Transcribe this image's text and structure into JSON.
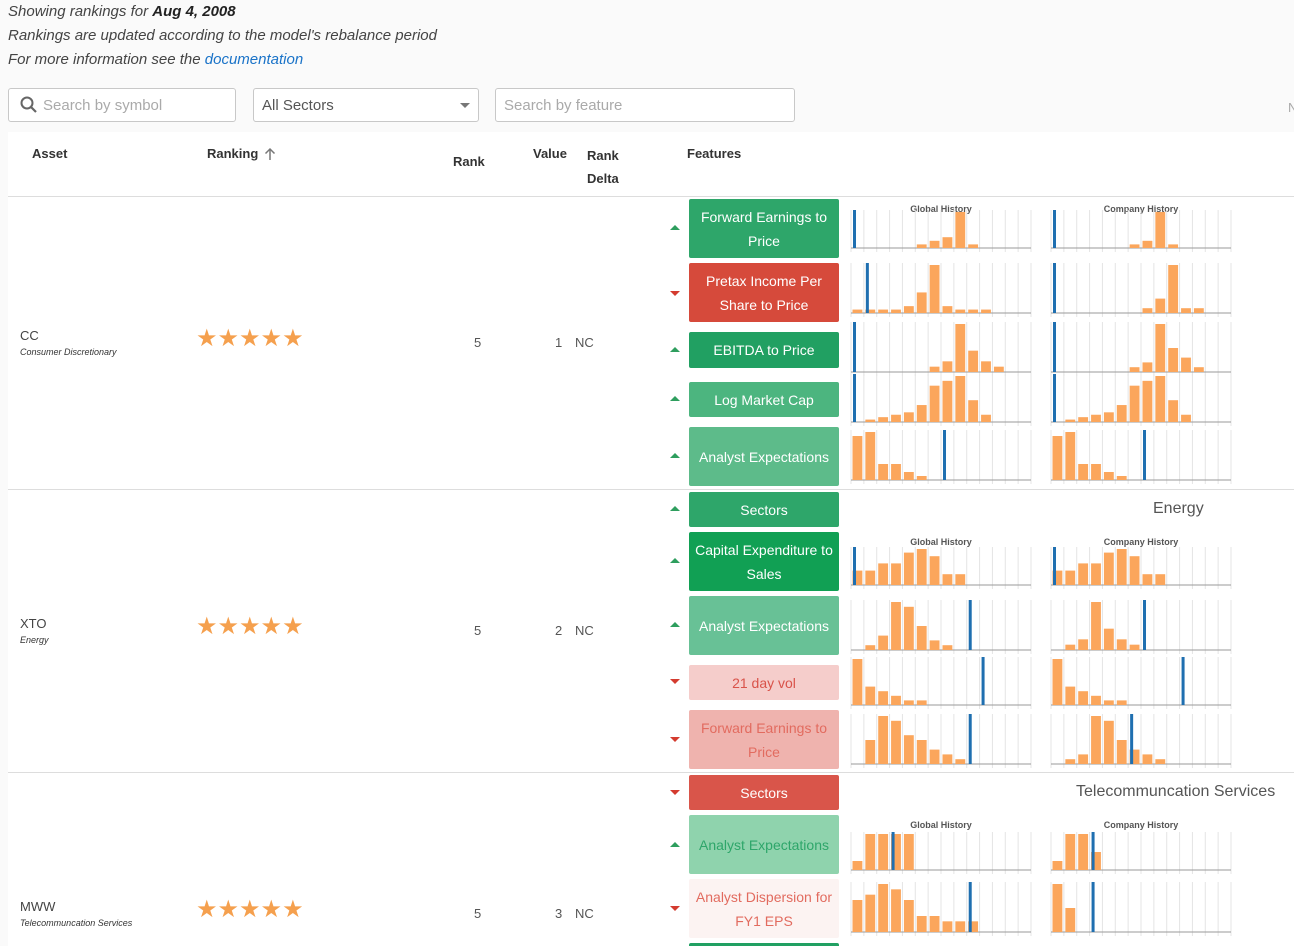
{
  "info": {
    "showing_prefix": "Showing rankings for ",
    "date": "Aug 4, 2008",
    "rebalance": "Rankings are updated according to the model's rebalance period",
    "more_prefix": "For more information see the ",
    "doc_link": "documentation"
  },
  "controls": {
    "symbol_placeholder": "Search by symbol",
    "sector_selected": "All Sectors",
    "feature_placeholder": "Search by feature",
    "edge_glyph": "N"
  },
  "headers": {
    "asset": "Asset",
    "ranking": "Ranking",
    "rank": "Rank",
    "value": "Value",
    "rank_delta_1": "Rank",
    "rank_delta_2": "Delta",
    "features": "Features",
    "global_history": "Global History",
    "company_history": "Company History"
  },
  "colors": {
    "bar": "#fba65c",
    "marker": "#1f6fb0",
    "up": "#2e9e5e",
    "down": "#d43b2f"
  },
  "rows": [
    {
      "symbol": "CC",
      "sector": "Consumer Discretionary",
      "stars": "★★★★★",
      "rank": "5",
      "value": "1",
      "delta": "NC",
      "features": [
        {
          "label": "Forward Earnings to Price",
          "dir": "up",
          "bg": "#2ea66a",
          "fg": "#ffffff"
        },
        {
          "label": "Pretax Income Per Share to Price",
          "dir": "down",
          "bg": "#d64a3b",
          "fg": "#ffffff"
        },
        {
          "label": "EBITDA to Price",
          "dir": "up",
          "bg": "#21a062",
          "fg": "#ffffff"
        },
        {
          "label": "Log Market Cap",
          "dir": "up",
          "bg": "#4cb57f",
          "fg": "#ffffff"
        },
        {
          "label": "Analyst Expectations",
          "dir": "up",
          "bg": "#5dbb8a",
          "fg": "#ffffff"
        }
      ]
    },
    {
      "symbol": "XTO",
      "sector": "Energy",
      "stars": "★★★★★",
      "rank": "5",
      "value": "2",
      "delta": "NC",
      "sector_feature_value": "Energy",
      "features": [
        {
          "label": "Sectors",
          "dir": "up",
          "bg": "#2ea66a",
          "fg": "#ffffff"
        },
        {
          "label": "Capital Expenditure to Sales",
          "dir": "up",
          "bg": "#11a054",
          "fg": "#ffffff"
        },
        {
          "label": "Analyst Expectations",
          "dir": "up",
          "bg": "#68c196",
          "fg": "#ffffff"
        },
        {
          "label": "21 day vol",
          "dir": "down",
          "bg": "#f5cdcb",
          "fg": "#d9534a"
        },
        {
          "label": "Forward Earnings to Price",
          "dir": "down",
          "bg": "#efb3ae",
          "fg": "#e26b5f"
        }
      ]
    },
    {
      "symbol": "MWW",
      "sector": "Telecommuncation Services",
      "stars": "★★★★★",
      "rank": "5",
      "value": "3",
      "delta": "NC",
      "sector_feature_value": "Telecommuncation Services",
      "features": [
        {
          "label": "Sectors",
          "dir": "down",
          "bg": "#d9554a",
          "fg": "#ffffff"
        },
        {
          "label": "Analyst Expectations",
          "dir": "up",
          "bg": "#8fd3ad",
          "fg": "#2ea66a"
        },
        {
          "label": "Analyst Dispersion for FY1 EPS",
          "dir": "down",
          "bg": "#fcf3f2",
          "fg": "#e26b5f"
        }
      ]
    }
  ],
  "histograms": [
    {
      "global": {
        "bars": [
          0,
          0,
          0,
          0,
          0,
          1,
          2,
          3,
          10,
          1,
          0,
          0,
          0,
          0
        ],
        "marker": 0
      },
      "company": {
        "bars": [
          0,
          0,
          0,
          0,
          0,
          0,
          1,
          2,
          10,
          1,
          0,
          0,
          0,
          0
        ],
        "marker": 0
      }
    },
    {
      "global": {
        "bars": [
          1,
          1,
          1,
          1,
          2,
          6,
          14,
          2,
          1,
          1,
          1,
          0,
          0,
          0
        ],
        "marker": 1
      },
      "company": {
        "bars": [
          0,
          0,
          0,
          0,
          0,
          0,
          0,
          1,
          3,
          10,
          1,
          1,
          0,
          0
        ],
        "marker": 0
      }
    },
    {
      "global": {
        "bars": [
          0,
          0,
          0,
          0,
          0,
          0,
          1,
          2,
          9,
          4,
          2,
          1,
          0,
          0
        ],
        "marker": 0
      },
      "company": {
        "bars": [
          0,
          0,
          0,
          0,
          0,
          0,
          1,
          2,
          10,
          5,
          3,
          1,
          0,
          0
        ],
        "marker": 0
      }
    },
    {
      "global": {
        "bars": [
          0,
          1,
          2,
          3,
          4,
          7,
          15,
          17,
          19,
          9,
          3,
          0,
          0,
          0
        ],
        "marker": 0
      },
      "company": {
        "bars": [
          0,
          1,
          2,
          3,
          4,
          7,
          15,
          17,
          19,
          9,
          3,
          0,
          0,
          0
        ],
        "marker": 0
      }
    },
    {
      "global": {
        "bars": [
          11,
          12,
          4,
          4,
          2,
          1,
          0,
          0,
          0,
          0,
          0,
          0,
          0,
          0
        ],
        "marker": 7
      },
      "company": {
        "bars": [
          11,
          12,
          4,
          4,
          2,
          1,
          0,
          0,
          0,
          0,
          0,
          0,
          0,
          0
        ],
        "marker": 7
      }
    },
    {
      "global": {
        "bars": [
          0,
          0,
          0,
          0,
          0,
          0,
          0,
          0,
          0,
          0,
          0,
          0,
          0,
          0
        ],
        "marker": -1
      },
      "company": {
        "bars": [
          0,
          0,
          0,
          0,
          0,
          0,
          0,
          0,
          0,
          0,
          0,
          0,
          0,
          0
        ],
        "marker": -1
      }
    },
    {
      "global": {
        "bars": [
          4,
          4,
          6,
          6,
          9,
          10,
          8,
          3,
          3,
          0,
          0,
          0,
          0,
          0
        ],
        "marker": 0
      },
      "company": {
        "bars": [
          4,
          4,
          6,
          6,
          9,
          10,
          8,
          3,
          3,
          0,
          0,
          0,
          0,
          0
        ],
        "marker": 0
      }
    },
    {
      "global": {
        "bars": [
          0,
          1,
          3,
          10,
          9,
          5,
          2,
          1,
          0,
          0,
          0,
          0,
          0,
          0
        ],
        "marker": 9
      },
      "company": {
        "bars": [
          0,
          1,
          2,
          9,
          4,
          2,
          1,
          0,
          0,
          0,
          0,
          0,
          0,
          0
        ],
        "marker": 7
      }
    },
    {
      "global": {
        "bars": [
          10,
          4,
          3,
          2,
          1,
          1,
          0,
          0,
          0,
          0,
          0,
          0,
          0,
          0
        ],
        "marker": 10
      },
      "company": {
        "bars": [
          10,
          4,
          3,
          2,
          1,
          1,
          0,
          0,
          0,
          0,
          0,
          0,
          0,
          0
        ],
        "marker": 10
      }
    },
    {
      "global": {
        "bars": [
          0,
          5,
          10,
          9,
          6,
          5,
          3,
          2,
          1,
          0,
          0,
          0,
          0,
          0
        ],
        "marker": 9
      },
      "company": {
        "bars": [
          0,
          1,
          2,
          10,
          9,
          5,
          3,
          2,
          1,
          0,
          0,
          0,
          0,
          0
        ],
        "marker": 6
      }
    },
    {
      "global": {
        "bars": [
          0,
          0,
          0,
          0,
          0,
          0,
          0,
          0,
          0,
          0,
          0,
          0,
          0,
          0
        ],
        "marker": -1
      },
      "company": {
        "bars": [
          0,
          0,
          0,
          0,
          0,
          0,
          0,
          0,
          0,
          0,
          0,
          0,
          0,
          0
        ],
        "marker": -1
      }
    },
    {
      "global": {
        "bars": [
          1,
          4,
          4,
          4,
          4,
          0,
          0,
          0,
          0,
          0,
          0,
          0,
          0,
          0
        ],
        "marker": 3
      },
      "company": {
        "bars": [
          1,
          4,
          4,
          2,
          0,
          0,
          0,
          0,
          0,
          0,
          0,
          0,
          0,
          0
        ],
        "marker": 3
      }
    },
    {
      "global": {
        "bars": [
          6,
          7,
          9,
          8,
          6,
          3,
          3,
          2,
          2,
          2,
          0,
          0,
          0,
          0
        ],
        "marker": 9
      },
      "company": {
        "bars": [
          6,
          3,
          0,
          0,
          0,
          0,
          0,
          0,
          0,
          0,
          0,
          0,
          0,
          0
        ],
        "marker": 3
      }
    }
  ]
}
